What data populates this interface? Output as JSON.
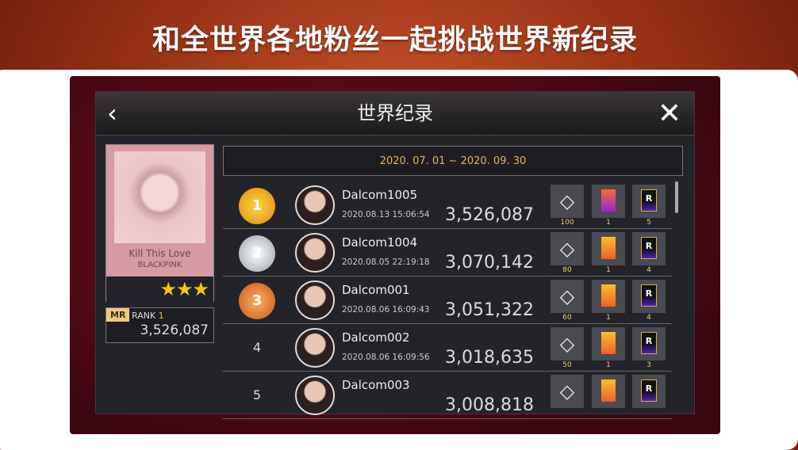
{
  "headline": "和全世界各地粉丝一起挑战世界新纪录",
  "window": {
    "title": "世界纪录",
    "back_icon": "chevron-left-icon",
    "close_icon": "close-icon"
  },
  "song": {
    "title": "Kill This Love",
    "artist": "BLACKPINK",
    "stars": 3,
    "stars_text": "★★★"
  },
  "my_record": {
    "badge": "MR",
    "rank_label": "RANK",
    "rank": "1",
    "score": "3,526,087"
  },
  "period": "2020. 07. 01 ~ 2020. 09. 30",
  "colors": {
    "gold": "#e8b060",
    "accent_bg": "#23232a"
  },
  "ranking": [
    {
      "rank": "1",
      "name": "Dalcom1005",
      "time": "2020.08.13 15:06:54",
      "score": "3,526,087",
      "rewards": [
        "100",
        "1",
        "5"
      ],
      "medal": "gold"
    },
    {
      "rank": "2",
      "name": "Dalcom1004",
      "time": "2020.08.05 22:19:18",
      "score": "3,070,142",
      "rewards": [
        "80",
        "1",
        "4"
      ],
      "medal": "silver"
    },
    {
      "rank": "3",
      "name": "Dalcom001",
      "time": "2020.08.06 16:09:43",
      "score": "3,051,322",
      "rewards": [
        "60",
        "1",
        "4"
      ],
      "medal": "bronze"
    },
    {
      "rank": "4",
      "name": "Dalcom002",
      "time": "2020.08.06 16:09:56",
      "score": "3,018,635",
      "rewards": [
        "50",
        "1",
        "3"
      ]
    },
    {
      "rank": "5",
      "name": "Dalcom003",
      "time": "",
      "score": "3,008,818",
      "rewards": [
        "",
        "",
        ""
      ]
    }
  ],
  "reward_icons": [
    "diamond-icon",
    "ticket-icon",
    "r-card-icon"
  ]
}
